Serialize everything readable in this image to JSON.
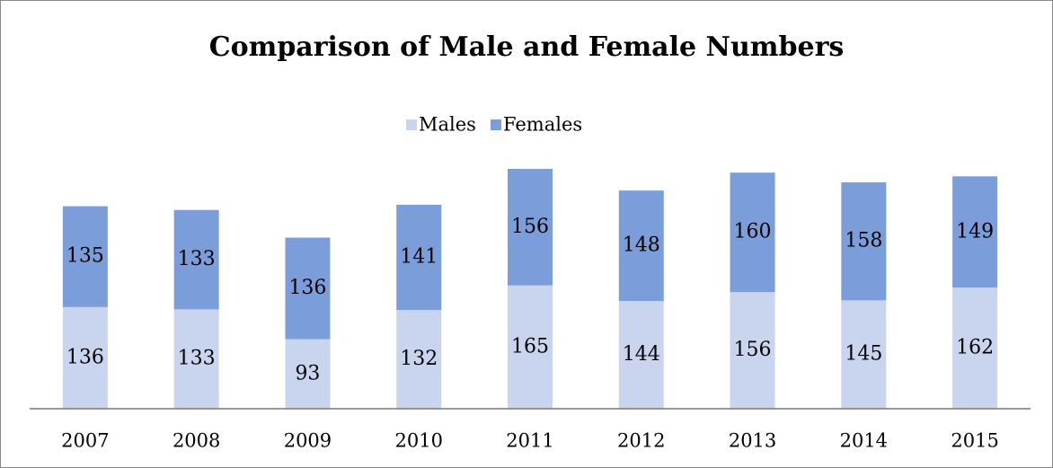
{
  "chart_data": {
    "type": "stacked_bar",
    "title": "Comparison of  Male and Female Numbers",
    "categories": [
      "2007",
      "2008",
      "2009",
      "2010",
      "2011",
      "2012",
      "2013",
      "2014",
      "2015"
    ],
    "series": [
      {
        "name": "Males",
        "color": "#c9d5ee",
        "values": [
          136,
          133,
          93,
          132,
          165,
          144,
          156,
          145,
          162
        ]
      },
      {
        "name": "Females",
        "color": "#7b9edb",
        "values": [
          135,
          133,
          136,
          141,
          156,
          148,
          160,
          158,
          149
        ]
      }
    ],
    "legend": "top"
  }
}
